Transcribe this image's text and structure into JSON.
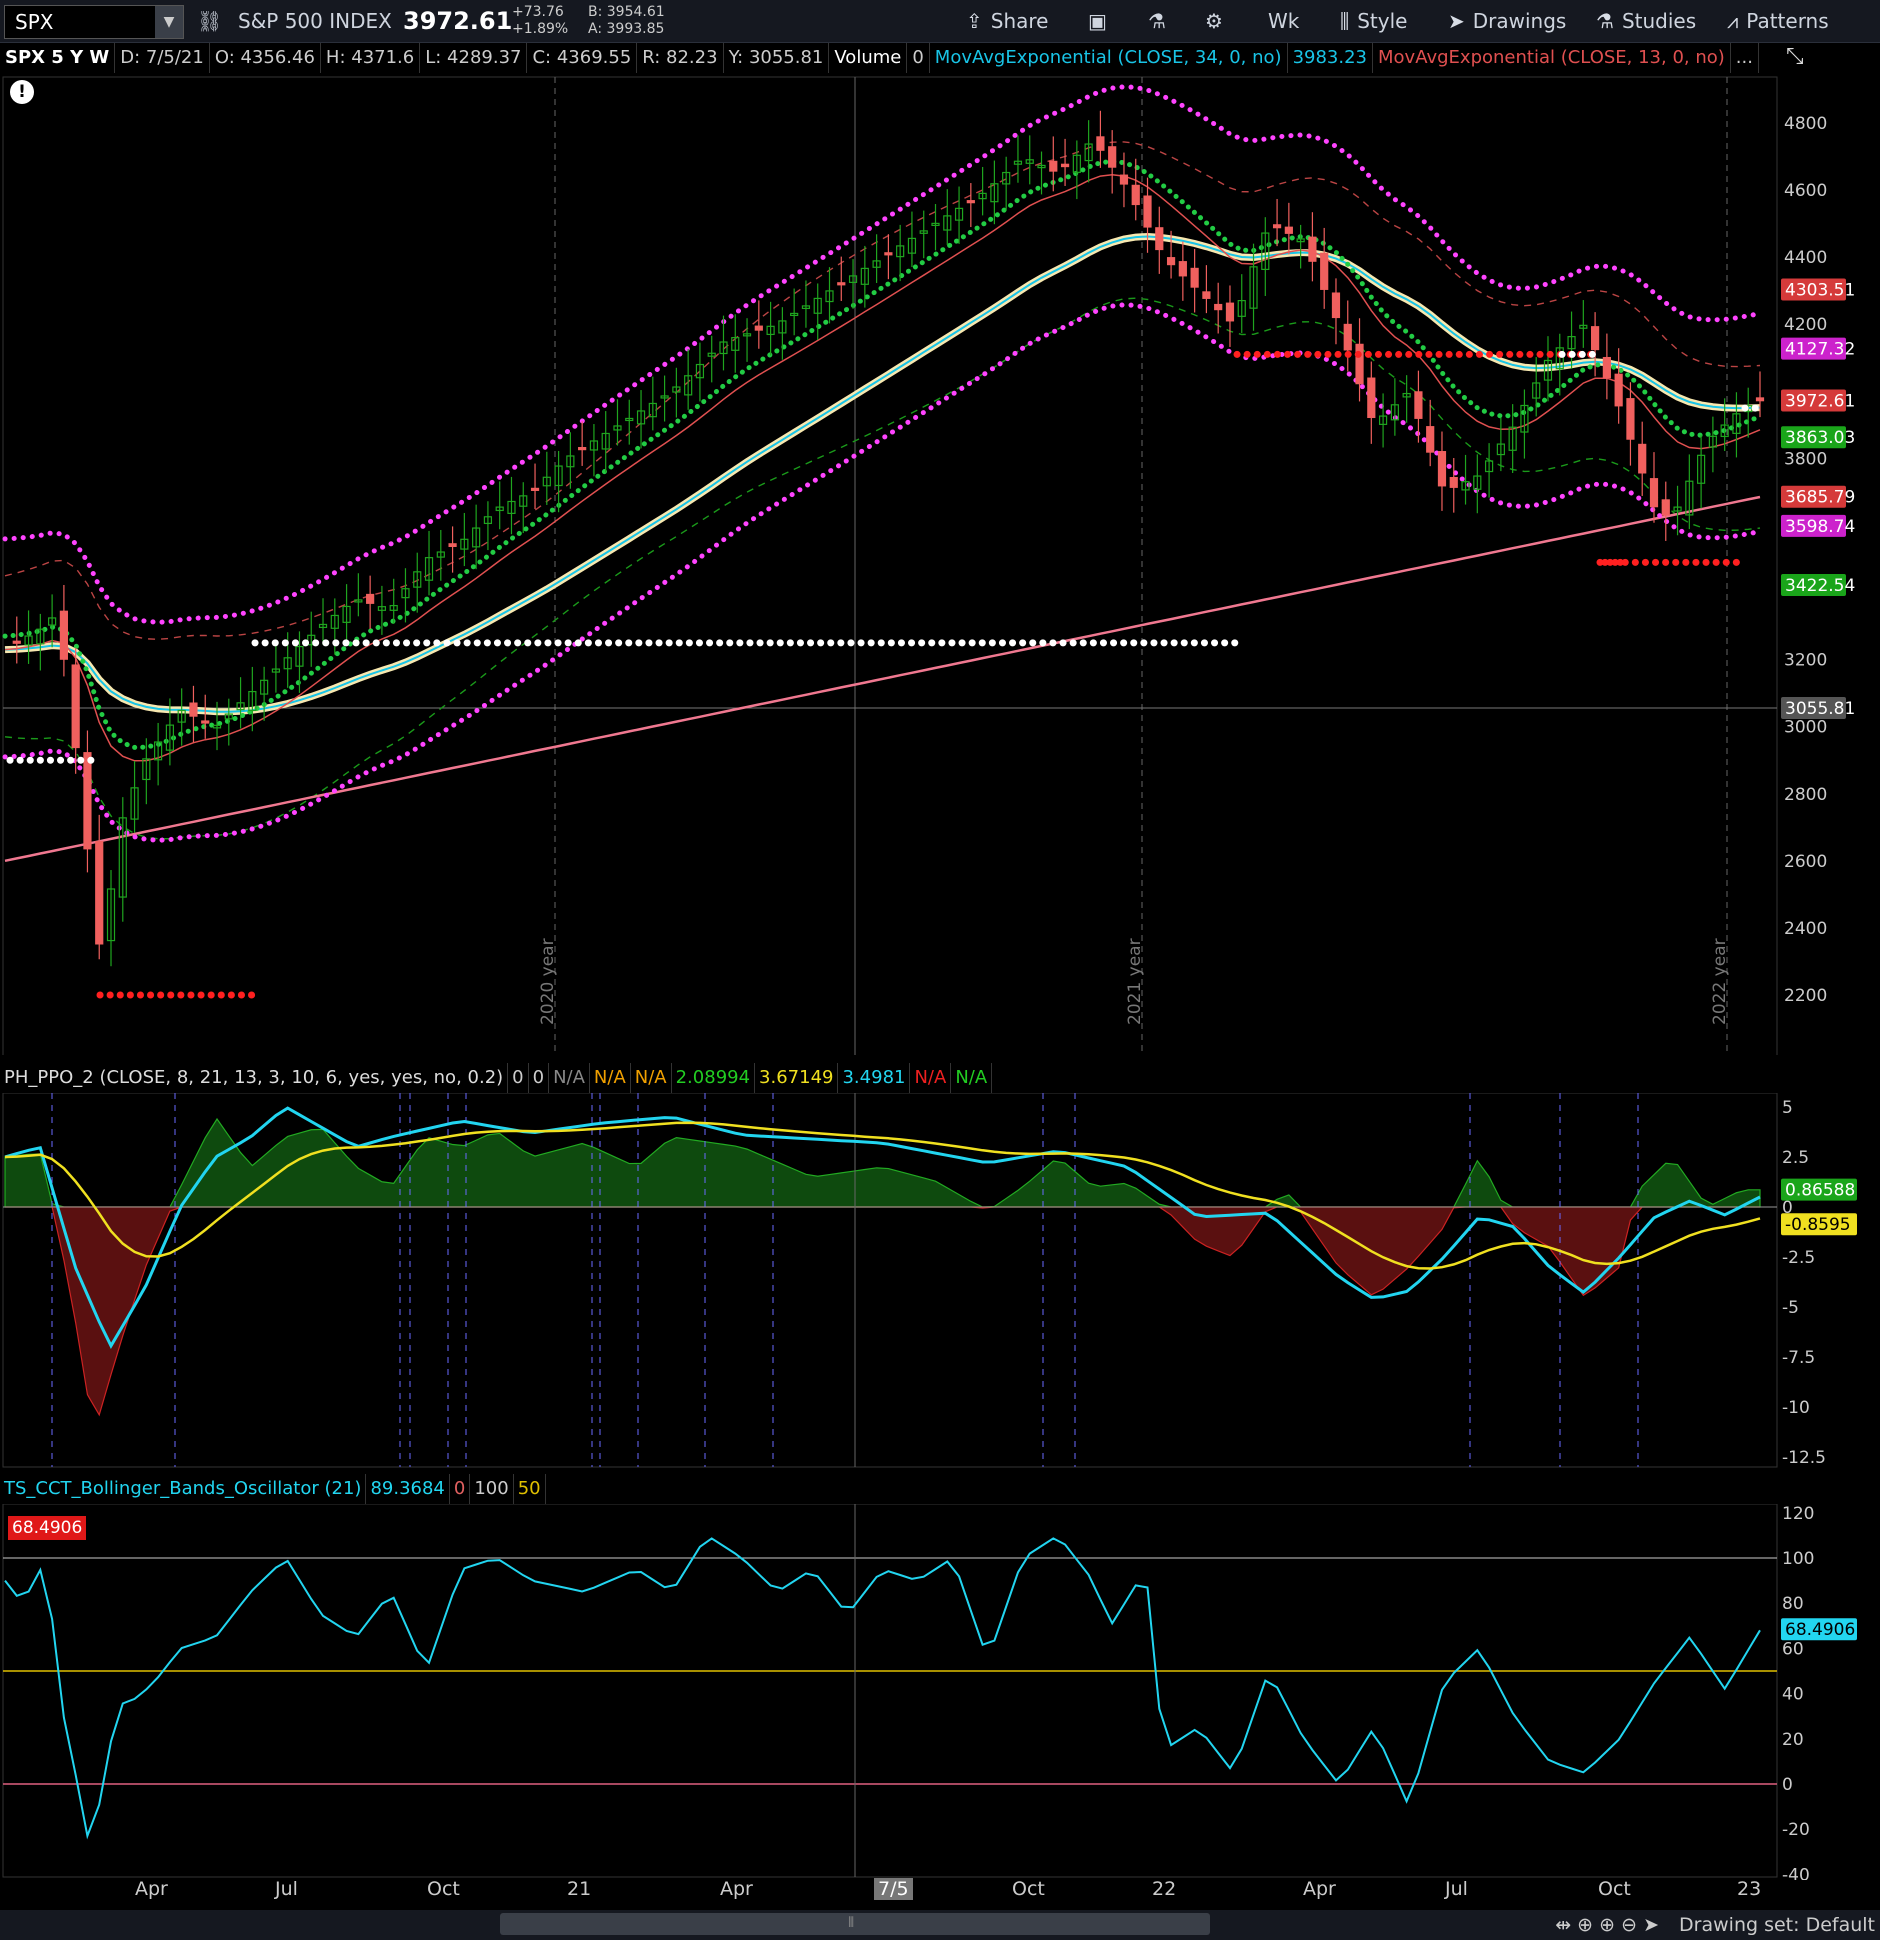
{
  "toolbar": {
    "symbol": "SPX",
    "description": "S&P 500 INDEX",
    "price": "3972.61",
    "change": "+73.76",
    "change_pct": "+1.89%",
    "bid": "B: 3954.61",
    "ask": "A: 3993.85",
    "share": "Share",
    "aggregation": "Wk",
    "style": "Style",
    "drawings": "Drawings",
    "studies": "Studies",
    "patterns": "Patterns"
  },
  "info": {
    "title": "SPX 5 Y W",
    "date": "D: 7/5/21",
    "open": "O: 4356.46",
    "high": "H: 4371.6",
    "low": "L: 4289.37",
    "close": "C: 4369.55",
    "range": "R: 82.23",
    "y": "Y: 3055.81",
    "volume_label": "Volume",
    "volume_value": "0",
    "ema34": "MovAvgExponential (CLOSE, 34, 0, no)",
    "ema34_value": "3983.23",
    "ema13": "MovAvgExponential (CLOSE, 13, 0, no)",
    "more": "..."
  },
  "colors": {
    "up": "#1fa51f",
    "down": "#f0605e",
    "ema34": "#19c4e6",
    "ema13": "#e05050",
    "magenta": "#ff44ff",
    "cream": "#f7e8b0",
    "ppo_cyan": "#22d5f0",
    "ppo_yellow": "#f0e020"
  },
  "price_axis": [
    "4800",
    "4600",
    "4400",
    "4200",
    "3800",
    "3200",
    "3000",
    "2800",
    "2600",
    "2400",
    "2200"
  ],
  "price_badges": [
    {
      "text": "4303.51",
      "color": "#d53a3a"
    },
    {
      "text": "4127.32",
      "color": "#cc22cc"
    },
    {
      "text": "3972.61",
      "color": "#d53a3a"
    },
    {
      "text": "3863.03",
      "color": "#1aa51a"
    },
    {
      "text": "3685.79",
      "color": "#d53a3a"
    },
    {
      "text": "3598.74",
      "color": "#cc22cc"
    },
    {
      "text": "3422.54",
      "color": "#1aa51a"
    },
    {
      "text": "3055.81",
      "color": "#555555"
    }
  ],
  "year_labels": [
    "2020 year",
    "2021 year",
    "2022 year"
  ],
  "ppo": {
    "name": "PH_PPO_2 (CLOSE, 8, 21, 13, 3, 10, 6, yes, yes, no, 0.2)",
    "vals": [
      "0",
      "0",
      "N/A",
      "N/A",
      "N/A",
      "2.08994",
      "3.67149",
      "3.4981",
      "N/A",
      "N/A"
    ],
    "axis": [
      "5",
      "2.5",
      "0",
      "-2.5",
      "-5",
      "-7.5",
      "-10",
      "-12.5"
    ],
    "badge_pos": "0.86588",
    "badge_neg": "-0.8595"
  },
  "bbo": {
    "name": "TS_CCT_Bollinger_Bands_Oscillator (21)",
    "value": "89.3684",
    "v0": "0",
    "v100": "100",
    "v50": "50",
    "left_badge": "68.4906",
    "right_badge": "68.4906",
    "axis": [
      "120",
      "100",
      "80",
      "60",
      "40",
      "20",
      "0",
      "-20",
      "-40"
    ]
  },
  "x_axis": [
    "Apr",
    "Jul",
    "Oct",
    "21",
    "Apr",
    "7/5",
    "Oct",
    "22",
    "Apr",
    "Jul",
    "Oct",
    "23"
  ],
  "bottom": {
    "drawing_set": "Drawing set: Default"
  }
}
